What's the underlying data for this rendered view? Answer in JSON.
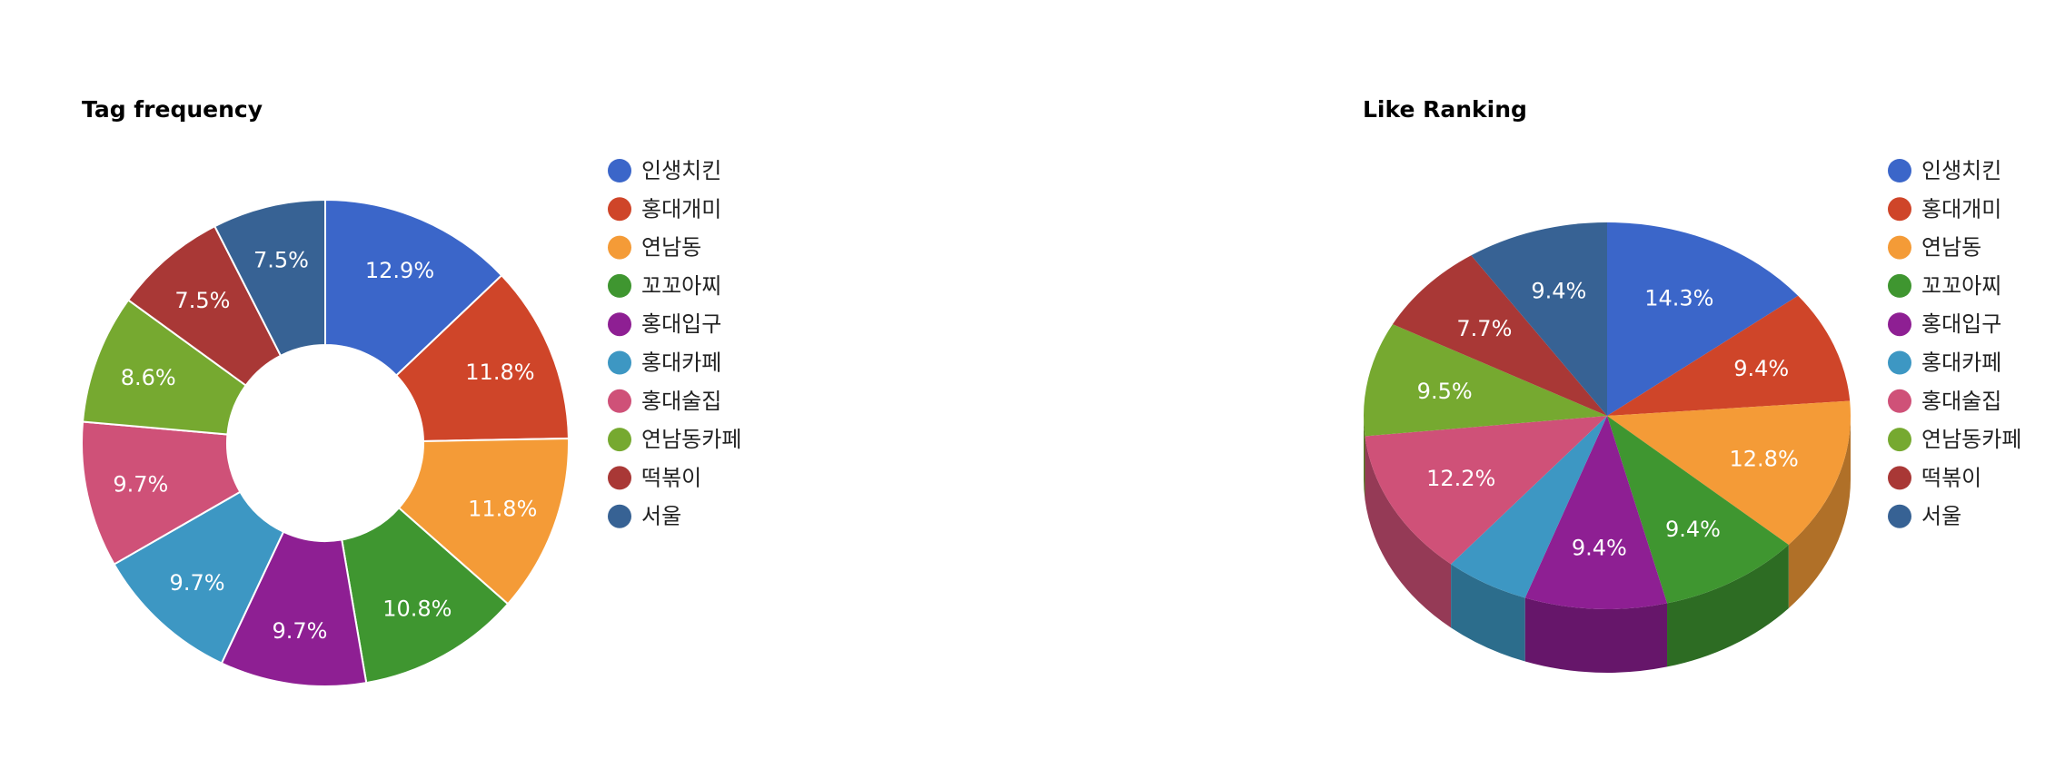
{
  "chart_data": [
    {
      "type": "pie",
      "title": "Tag frequency",
      "donut": true,
      "categories": [
        "인생치킨",
        "홍대개미",
        "연남동",
        "꼬꼬아찌",
        "홍대입구",
        "홍대카페",
        "홍대술집",
        "연남동카페",
        "떡볶이",
        "서울"
      ],
      "values": [
        12.9,
        11.8,
        11.8,
        10.8,
        9.7,
        9.7,
        9.7,
        8.6,
        7.5,
        7.5
      ],
      "value_labels": [
        "12.9%",
        "11.8%",
        "11.8%",
        "10.8%",
        "9.7%",
        "9.7%",
        "9.7%",
        "8.6%",
        "7.5%",
        "7.5%"
      ],
      "colors": [
        "#3b66c9",
        "#cf4529",
        "#f49b37",
        "#3f9630",
        "#8e1f93",
        "#3d97c3",
        "#cf5178",
        "#76a930",
        "#a93836",
        "#376294"
      ],
      "legend": "right"
    },
    {
      "type": "pie",
      "title": "Like Ranking",
      "is3D": true,
      "categories": [
        "인생치킨",
        "홍대개미",
        "연남동",
        "꼬꼬아찌",
        "홍대입구",
        "홍대카페",
        "홍대술집",
        "연남동카페",
        "떡볶이",
        "서울"
      ],
      "values": [
        14.3,
        9.4,
        12.8,
        9.4,
        9.4,
        5.6,
        12.2,
        9.5,
        7.7,
        9.4
      ],
      "value_labels": [
        "14.3%",
        "9.4%",
        "12.8%",
        "9.4%",
        "9.4%",
        "",
        "12.2%",
        "9.5%",
        "7.7%",
        "9.4%"
      ],
      "colors": [
        "#3b66c9",
        "#cf4529",
        "#f49b37",
        "#3f9630",
        "#8e1f93",
        "#3d97c3",
        "#cf5178",
        "#76a930",
        "#a93836",
        "#376294"
      ],
      "legend": "right"
    }
  ]
}
